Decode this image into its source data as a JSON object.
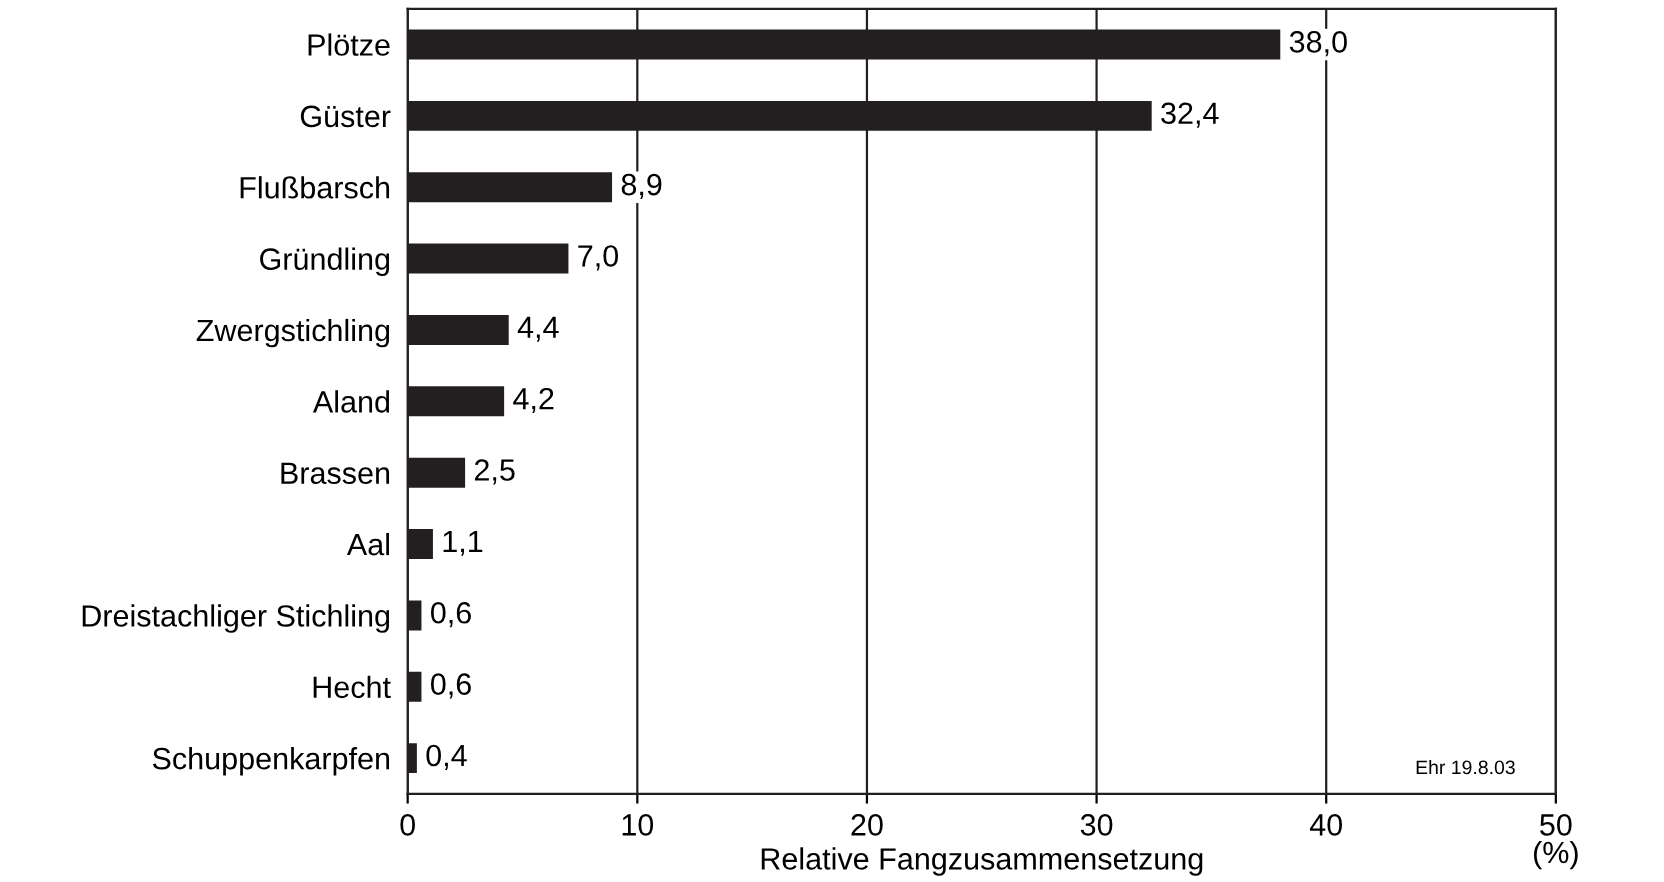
{
  "chart_data": {
    "type": "bar",
    "orientation": "horizontal",
    "categories": [
      "Plötze",
      "Güster",
      "Flußbarsch",
      "Gründling",
      "Zwergstichling",
      "Aland",
      "Brassen",
      "Aal",
      "Dreistachliger Stichling",
      "Hecht",
      "Schuppenkarpfen"
    ],
    "values": [
      38.0,
      32.4,
      8.9,
      7.0,
      4.4,
      4.2,
      2.5,
      1.1,
      0.6,
      0.6,
      0.4
    ],
    "value_labels": [
      "38,0",
      "32,4",
      "8,9",
      "7,0",
      "4,4",
      "4,2",
      "2,5",
      "1,1",
      "0,6",
      "0,6",
      "0,4"
    ],
    "color": "#231f20",
    "xlim": [
      0,
      50
    ],
    "xticks": [
      0,
      10,
      20,
      30,
      40,
      50
    ],
    "xlabel": "Relative Fangzusammensetzung",
    "annotations": [
      "(%)",
      "Ehr 19.8.03"
    ],
    "grid": "x"
  }
}
